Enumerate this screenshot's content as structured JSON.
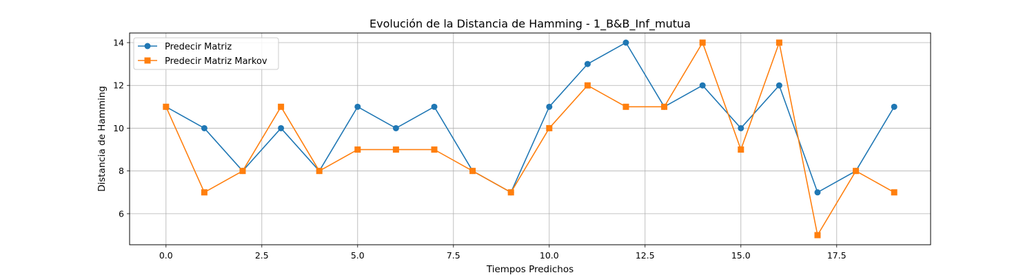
{
  "chart_data": {
    "type": "line",
    "title": "Evolución de la Distancia de Hamming - 1_B&B_Inf_mutua",
    "xlabel": "Tiempos Predichos",
    "ylabel": "Distancia de Hamming",
    "x": [
      0,
      1,
      2,
      3,
      4,
      5,
      6,
      7,
      8,
      9,
      10,
      11,
      12,
      13,
      14,
      15,
      16,
      17,
      18,
      19
    ],
    "series": [
      {
        "name": "Predecir Matriz",
        "color": "#1f77b4",
        "marker": "circle",
        "values": [
          11,
          10,
          8,
          10,
          8,
          11,
          10,
          11,
          8,
          7,
          11,
          13,
          14,
          11,
          12,
          10,
          12,
          7,
          8,
          11
        ]
      },
      {
        "name": "Predecir Matriz Markov",
        "color": "#ff7f0e",
        "marker": "square",
        "values": [
          11,
          7,
          8,
          11,
          8,
          9,
          9,
          9,
          8,
          7,
          10,
          12,
          11,
          11,
          14,
          9,
          14,
          5,
          8,
          7
        ]
      }
    ],
    "xlim": [
      -0.95,
      19.95
    ],
    "ylim": [
      4.55,
      14.45
    ],
    "xticks": [
      0.0,
      2.5,
      5.0,
      7.5,
      10.0,
      12.5,
      15.0,
      17.5
    ],
    "xtick_labels": [
      "0.0",
      "2.5",
      "5.0",
      "7.5",
      "10.0",
      "12.5",
      "15.0",
      "17.5"
    ],
    "yticks": [
      6,
      8,
      10,
      12,
      14
    ],
    "ytick_labels": [
      "6",
      "8",
      "10",
      "12",
      "14"
    ],
    "grid": true,
    "legend_position": "top-left"
  }
}
